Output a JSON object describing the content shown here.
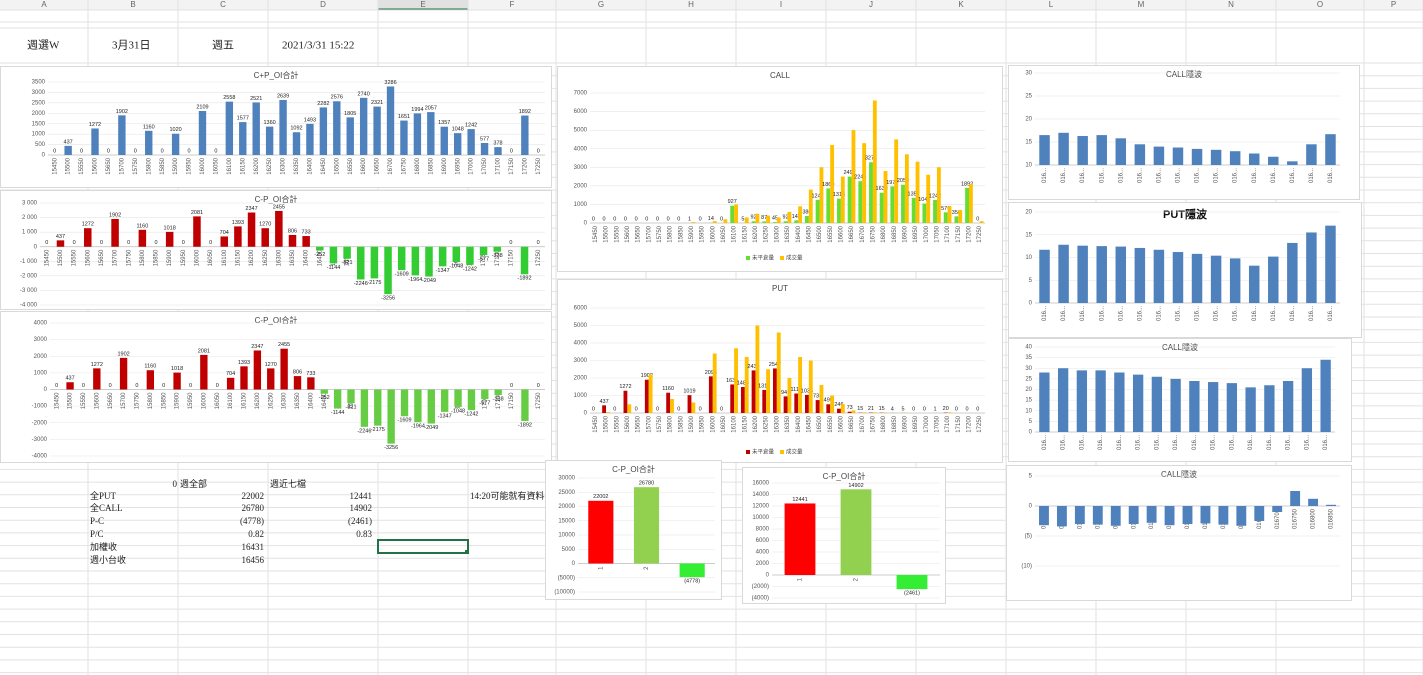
{
  "grid": {
    "columns": [
      "A",
      "B",
      "C",
      "D",
      "E",
      "F",
      "G",
      "H",
      "I",
      "J",
      "K",
      "L",
      "M",
      "N",
      "O",
      "P"
    ]
  },
  "header_cells": [
    "週選W",
    "3月31日",
    "週五",
    "2021/3/31 15:22"
  ],
  "table": {
    "header": [
      0,
      "週全部",
      "週近七檔"
    ],
    "rows": [
      [
        "全PUT",
        22002,
        12441
      ],
      [
        "全CALL",
        26780,
        14902
      ],
      [
        "P-C",
        "(4778)",
        "(2461)"
      ],
      [
        "P/C",
        0.82,
        0.83
      ],
      [
        "加權收",
        16431
      ],
      [
        "週小台收",
        16456
      ]
    ],
    "note": "14:20可能就有資料"
  },
  "chart_data": [
    {
      "type": "bar",
      "title": "C+P_OI合計",
      "color": "#4f81bd",
      "data_labels": true,
      "grid": true,
      "categories": [
        "15450",
        "15500",
        "15550",
        "15600",
        "15650",
        "15700",
        "15750",
        "15800",
        "15850",
        "15900",
        "15950",
        "16000",
        "16050",
        "16100",
        "16150",
        "16200",
        "16250",
        "16300",
        "16350",
        "16400",
        "16450",
        "16500",
        "16550",
        "16600",
        "16650",
        "16700",
        "16750",
        "16800",
        "16850",
        "16900",
        "16950",
        "17000",
        "17050",
        "17100",
        "17150",
        "17200",
        "17250"
      ],
      "values": [
        0,
        437,
        0,
        1272,
        0,
        1902,
        0,
        1160,
        0,
        1020,
        0,
        2109,
        0,
        2558,
        1577,
        2521,
        1360,
        2639,
        1092,
        1493,
        2282,
        2576,
        1805,
        2740,
        2321,
        3286,
        1651,
        1994,
        2057,
        1357,
        1048,
        1242,
        577,
        378,
        0,
        1892,
        0
      ],
      "ylim": [
        0,
        3500
      ],
      "yticks": [
        0,
        500,
        1000,
        1500,
        2000,
        2500,
        3000,
        3500
      ]
    },
    {
      "type": "bar",
      "title": "C-P_OI合計",
      "color": "#c00000",
      "negative_color": "#33cc33",
      "data_labels": true,
      "grid": true,
      "categories": [
        "15450",
        "15500",
        "15550",
        "15600",
        "15650",
        "15700",
        "15750",
        "15800",
        "15850",
        "15900",
        "15950",
        "16000",
        "16050",
        "16100",
        "16150",
        "16200",
        "16250",
        "16300",
        "16350",
        "16400",
        "16450",
        "16500",
        "16550",
        "16600",
        "16650",
        "16700",
        "16750",
        "16800",
        "16850",
        "16900",
        "16950",
        "17000",
        "17050",
        "17100",
        "17150",
        "17200",
        "17250"
      ],
      "values": [
        0,
        437,
        0,
        1272,
        0,
        1902,
        0,
        1160,
        0,
        1018,
        0,
        2081,
        0,
        704,
        1393,
        2347,
        1270,
        2455,
        806,
        733,
        -252,
        -1144,
        -821,
        -2246,
        -2175,
        -3256,
        -1609,
        -1964,
        -2049,
        -1347,
        -1048,
        -1242,
        -577,
        -338,
        0,
        -1892,
        0
      ],
      "ylim": [
        -4000,
        3000
      ],
      "yticks": [
        {
          "value": 3000,
          "label": "3 000"
        },
        {
          "value": 2000,
          "label": "2 000"
        },
        {
          "value": 1000,
          "label": "1 000"
        },
        0,
        {
          "value": -1000,
          "label": "-1 000"
        },
        {
          "value": -2000,
          "label": "-2 000"
        },
        {
          "value": -3000,
          "label": "-3 000"
        },
        {
          "value": -4000,
          "label": "-4 000"
        }
      ]
    },
    {
      "type": "bar",
      "title": "C-P_OI合計",
      "color": "#c00000",
      "negative_color": "#66cc44",
      "data_labels": true,
      "grid": true,
      "categories": [
        "15450",
        "15500",
        "15550",
        "15600",
        "15650",
        "15700",
        "15750",
        "15800",
        "15850",
        "15900",
        "15950",
        "16000",
        "16050",
        "16100",
        "16150",
        "16200",
        "16250",
        "16300",
        "16350",
        "16400",
        "16450",
        "16500",
        "16550",
        "16600",
        "16650",
        "16700",
        "16750",
        "16800",
        "16850",
        "16900",
        "16950",
        "17000",
        "17050",
        "17100",
        "17150",
        "17200",
        "17250"
      ],
      "values": [
        0,
        437,
        0,
        1272,
        0,
        1902,
        0,
        1160,
        0,
        1018,
        0,
        2081,
        0,
        704,
        1393,
        2347,
        1270,
        2455,
        806,
        733,
        -252,
        -1144,
        -821,
        -2246,
        -2175,
        -3256,
        -1609,
        -1964,
        -2049,
        -1347,
        -1048,
        -1242,
        -577,
        -338,
        0,
        -1892,
        0
      ],
      "ylim": [
        -4000,
        4000
      ],
      "yticks": [
        4000,
        3000,
        2000,
        1000,
        0,
        -1000,
        -2000,
        -3000,
        -4000
      ]
    },
    {
      "type": "bar",
      "title": "CALL",
      "grid": true,
      "legend": "bottom",
      "categories": [
        "15450",
        "15500",
        "15550",
        "15600",
        "15650",
        "15700",
        "15750",
        "15800",
        "15850",
        "15900",
        "15950",
        "16000",
        "16050",
        "16100",
        "16150",
        "16200",
        "16250",
        "16300",
        "16350",
        "16400",
        "16450",
        "16500",
        "16550",
        "16600",
        "16650",
        "16700",
        "16750",
        "16800",
        "16850",
        "16900",
        "16950",
        "17000",
        "17050",
        "17100",
        "17150",
        "17200",
        "17250"
      ],
      "series": [
        {
          "name": "未平倉量",
          "color": "#66dd33",
          "data_labels": true,
          "values": [
            0,
            0,
            0,
            0,
            0,
            0,
            0,
            0,
            0,
            1,
            0,
            14,
            0,
            927,
            5,
            92,
            87,
            45,
            92,
            143,
            380,
            1247,
            1860,
            1313,
            2497,
            2248,
            3271,
            1630,
            1970,
            2059,
            1352,
            1048,
            1242,
            576,
            358,
            1892,
            0
          ]
        },
        {
          "name": "成交量",
          "color": "#ffc000",
          "values": [
            0,
            0,
            0,
            0,
            0,
            0,
            0,
            0,
            0,
            50,
            0,
            100,
            200,
            1000,
            300,
            500,
            400,
            300,
            600,
            900,
            1800,
            3000,
            4200,
            2500,
            5000,
            4300,
            6600,
            2800,
            4500,
            3700,
            3300,
            2600,
            3000,
            900,
            700,
            2100,
            100
          ]
        }
      ],
      "ylim": [
        0,
        7000
      ],
      "yticks": [
        0,
        1000,
        2000,
        3000,
        4000,
        5000,
        6000,
        7000
      ]
    },
    {
      "type": "bar",
      "title": "PUT",
      "grid": true,
      "legend": "bottom",
      "categories": [
        "15450",
        "15500",
        "15550",
        "15600",
        "15650",
        "15700",
        "15750",
        "15800",
        "15850",
        "15900",
        "15950",
        "16000",
        "16050",
        "16100",
        "16150",
        "16200",
        "16250",
        "16300",
        "16350",
        "16400",
        "16450",
        "16500",
        "16550",
        "16600",
        "16650",
        "16700",
        "16750",
        "16800",
        "16850",
        "16900",
        "16950",
        "17000",
        "17050",
        "17100",
        "17150",
        "17200",
        "17250"
      ],
      "series": [
        {
          "name": "未平倉量",
          "color": "#c00000",
          "data_labels": true,
          "values": [
            0,
            437,
            0,
            1272,
            0,
            1902,
            0,
            1160,
            0,
            1019,
            0,
            2095,
            0,
            1632,
            1485,
            2434,
            1315,
            2547,
            949,
            1114,
            1035,
            738,
            499,
            246,
            73,
            15,
            21,
            15,
            4,
            5,
            0,
            0,
            1,
            20,
            0,
            0,
            0
          ]
        },
        {
          "name": "成交量",
          "color": "#ffc000",
          "values": [
            0,
            50,
            0,
            500,
            0,
            2200,
            0,
            800,
            0,
            600,
            0,
            3400,
            0,
            3700,
            3200,
            5000,
            2500,
            4600,
            2000,
            3200,
            3000,
            1600,
            1000,
            500,
            150,
            40,
            40,
            30,
            10,
            10,
            0,
            0,
            5,
            40,
            0,
            0,
            0
          ]
        }
      ],
      "ylim": [
        0,
        6000
      ],
      "yticks": [
        0,
        1000,
        2000,
        3000,
        4000,
        5000,
        6000
      ]
    },
    {
      "type": "bar",
      "title": "C-P_OI合計",
      "data_labels": true,
      "grid": true,
      "tick_negative_color": "#c00000",
      "categories": [
        "1",
        "2",
        "3"
      ],
      "values": [
        22002,
        26780,
        -4778
      ],
      "value_labels": [
        "22002",
        "26780",
        "(4778)"
      ],
      "colors": [
        "#ff0000",
        "#92d050",
        "#33ee33"
      ],
      "ylim": [
        -10000,
        30000
      ],
      "yticks": [
        30000,
        25000,
        20000,
        15000,
        10000,
        5000,
        0,
        {
          "value": -5000,
          "label": "(5000)"
        },
        {
          "value": -10000,
          "label": "(10000)"
        }
      ]
    },
    {
      "type": "bar",
      "title": "C-P_OI合計",
      "data_labels": true,
      "grid": true,
      "tick_negative_color": "#c00000",
      "categories": [
        "1",
        "2",
        "3"
      ],
      "values": [
        12441,
        14902,
        -2461
      ],
      "value_labels": [
        "12441",
        "14902",
        "(2461)"
      ],
      "colors": [
        "#ff0000",
        "#92d050",
        "#33ee33"
      ],
      "ylim": [
        -4000,
        16000
      ],
      "yticks": [
        16000,
        14000,
        12000,
        10000,
        8000,
        6000,
        4000,
        2000,
        0,
        {
          "value": -2000,
          "label": "(2000)"
        },
        {
          "value": -4000,
          "label": "(4000)"
        }
      ]
    },
    {
      "type": "bar",
      "title": "CALL隱波",
      "color": "#4f81bd",
      "grid": true,
      "categories": [
        "016...",
        "016...",
        "016...",
        "016...",
        "016...",
        "016...",
        "016...",
        "016...",
        "016...",
        "016...",
        "016...",
        "016...",
        "016...",
        "016...",
        "016...",
        "016..."
      ],
      "values": [
        16.5,
        17,
        16.3,
        16.5,
        15.8,
        14.5,
        14,
        13.8,
        13.5,
        13.3,
        13,
        12.5,
        11.8,
        10.8,
        14.5,
        16.7
      ],
      "ylim": [
        10,
        30
      ],
      "yticks": [
        10,
        15,
        20,
        25,
        30
      ]
    },
    {
      "type": "bar",
      "title": "PUT隱波",
      "color": "#4f81bd",
      "grid": true,
      "categories": [
        "016...",
        "016...",
        "016...",
        "016...",
        "016...",
        "016...",
        "016...",
        "016...",
        "016...",
        "016...",
        "016...",
        "016...",
        "016...",
        "016...",
        "016...",
        "016..."
      ],
      "values": [
        11.7,
        12.8,
        12.6,
        12.5,
        12.4,
        12.1,
        11.7,
        11.2,
        10.8,
        10.4,
        9.8,
        8.2,
        10.2,
        13.2,
        15.5,
        17
      ],
      "ylim": [
        0,
        20
      ],
      "yticks": [
        0,
        5,
        10,
        15,
        20
      ]
    },
    {
      "type": "bar",
      "title": "CALL隱波",
      "color": "#4f81bd",
      "grid": true,
      "categories": [
        "016...",
        "016...",
        "016...",
        "016...",
        "016...",
        "016...",
        "016...",
        "016...",
        "016...",
        "016...",
        "016...",
        "016...",
        "016...",
        "016...",
        "016...",
        "016..."
      ],
      "values": [
        28,
        30,
        29,
        29,
        28,
        27,
        26,
        25,
        24,
        23.5,
        23,
        21,
        22,
        24,
        30,
        34
      ],
      "ylim": [
        0,
        40
      ],
      "yticks": [
        0,
        5,
        10,
        15,
        20,
        25,
        30,
        35,
        40
      ]
    },
    {
      "type": "bar",
      "title": "CALL隱波",
      "color": "#4f81bd",
      "grid": true,
      "tick_negative_color": "#c00000",
      "categories": [
        "016050",
        "016100",
        "016150",
        "016200",
        "016250",
        "016300",
        "016350",
        "016400",
        "016450",
        "016500",
        "016550",
        "016600",
        "016650",
        "016700",
        "016750",
        "016800",
        "016850"
      ],
      "values": [
        -3.2,
        -3.4,
        -3,
        -3.1,
        -3.3,
        -3,
        -2.8,
        -3.2,
        -3,
        -2.9,
        -3.1,
        -3.3,
        -2.5,
        -1,
        2.5,
        1.2,
        0.2
      ],
      "ylim": [
        -10,
        5
      ],
      "yticks": [
        5,
        0,
        {
          "value": -5,
          "label": "(5)"
        },
        {
          "value": -10,
          "label": "(10)"
        }
      ]
    }
  ]
}
